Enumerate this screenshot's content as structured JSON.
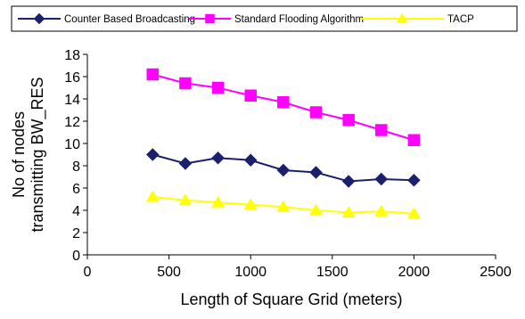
{
  "chart_data": {
    "type": "line",
    "title": "",
    "xlabel": "Length of Square Grid (meters)",
    "ylabel": [
      "No of nodes",
      "transmitting BW_RES"
    ],
    "xlim": [
      0,
      2500
    ],
    "ylim": [
      0,
      18
    ],
    "x_ticks": [
      "0",
      "500",
      "1000",
      "1500",
      "2000",
      "2500"
    ],
    "y_ticks": [
      "0",
      "2",
      "4",
      "6",
      "8",
      "10",
      "12",
      "14",
      "16",
      "18"
    ],
    "grid": false,
    "legend_position": "top",
    "x": [
      400,
      600,
      800,
      1000,
      1200,
      1400,
      1600,
      1800,
      2000
    ],
    "series": [
      {
        "name": "Counter Based Broadcasting",
        "marker": "diamond",
        "color": "#1a1f6e",
        "values": [
          9.0,
          8.2,
          8.7,
          8.5,
          7.6,
          7.4,
          6.6,
          6.8,
          6.7
        ]
      },
      {
        "name": "Standard Flooding Algorithm",
        "marker": "square",
        "color": "#ff00ff",
        "values": [
          16.2,
          15.4,
          15.0,
          14.3,
          13.7,
          12.8,
          12.1,
          11.2,
          10.3
        ]
      },
      {
        "name": "TACP",
        "marker": "triangle",
        "color": "#ffff00",
        "values": [
          5.2,
          4.9,
          4.7,
          4.5,
          4.3,
          4.0,
          3.8,
          3.9,
          3.7
        ]
      }
    ]
  }
}
